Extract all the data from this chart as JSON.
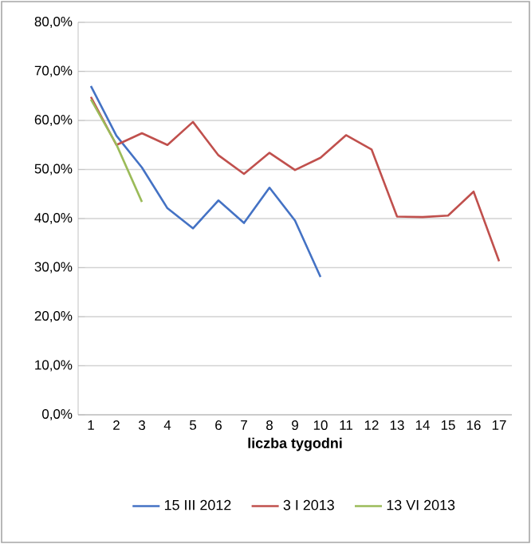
{
  "chart_data": {
    "type": "line",
    "xlabel": "liczba tygodni",
    "categories": [
      "1",
      "2",
      "3",
      "4",
      "5",
      "6",
      "7",
      "8",
      "9",
      "10",
      "11",
      "12",
      "13",
      "14",
      "15",
      "16",
      "17"
    ],
    "series": [
      {
        "name": "15 III 2012",
        "color": "#4472c4",
        "values": [
          67.0,
          56.9,
          50.4,
          42.1,
          38.0,
          43.7,
          39.1,
          46.3,
          39.6,
          28.1,
          null,
          null,
          null,
          null,
          null,
          null,
          null
        ]
      },
      {
        "name": "3 I 2013",
        "color": "#c0504d",
        "values": [
          64.8,
          55.0,
          57.4,
          55.0,
          59.7,
          52.9,
          49.1,
          53.4,
          49.9,
          52.4,
          57.0,
          54.1,
          40.4,
          40.3,
          40.6,
          45.5,
          31.3
        ]
      },
      {
        "name": "13 VI 2013",
        "color": "#9bbb59",
        "values": [
          64.3,
          55.1,
          43.4,
          null,
          null,
          null,
          null,
          null,
          null,
          null,
          null,
          null,
          null,
          null,
          null,
          null,
          null
        ]
      }
    ],
    "ylim": [
      0,
      80
    ],
    "yticks": [
      {
        "value": 0,
        "label": "0,0%"
      },
      {
        "value": 10,
        "label": "10,0%"
      },
      {
        "value": 20,
        "label": "20,0%"
      },
      {
        "value": 30,
        "label": "30,0%"
      },
      {
        "value": 40,
        "label": "40,0%"
      },
      {
        "value": 50,
        "label": "50,0%"
      },
      {
        "value": 60,
        "label": "60,0%"
      },
      {
        "value": 70,
        "label": "70,0%"
      },
      {
        "value": 80,
        "label": "80,0%"
      }
    ],
    "grid": "y",
    "legend": "bottom",
    "marker": "none",
    "line_style": "solid"
  }
}
